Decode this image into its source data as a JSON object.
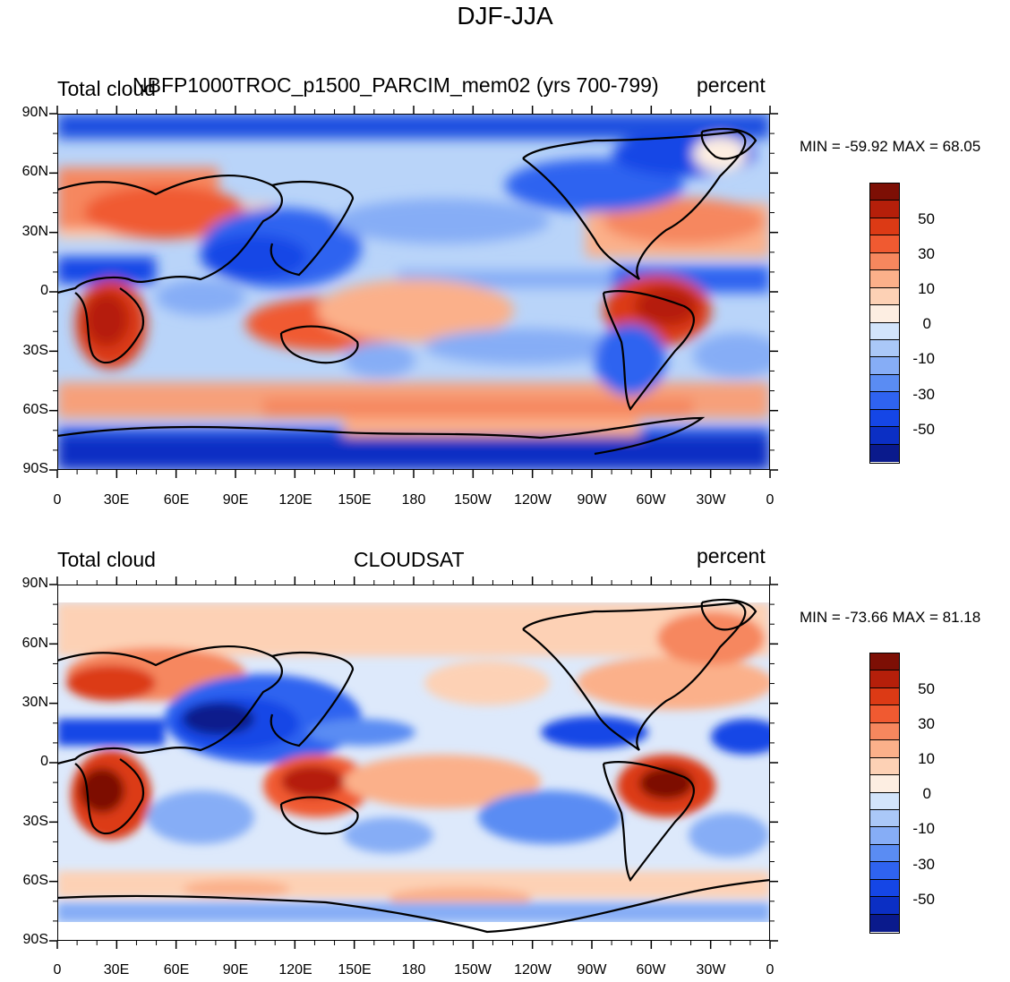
{
  "figure": {
    "title": "DJF-JJA",
    "palette": [
      "#0a1a8c",
      "#0b2fc4",
      "#1546e6",
      "#2f63f0",
      "#5a8cf3",
      "#86adf6",
      "#aac8f8",
      "#d2e4fb",
      "#fdeee2",
      "#fdd1b5",
      "#fbb08a",
      "#f6875e",
      "#f05a31",
      "#dc3a15",
      "#b51f0a",
      "#7d0f05"
    ]
  },
  "panels": [
    {
      "left_title": "Total cloud",
      "center_title": "NBFP1000TROC_p1500_PARCIM_mem02 (yrs 700-799)",
      "right_title": "percent",
      "stats": "MIN = -59.92 MAX =  68.05",
      "lat_labels": [
        "90N",
        "60N",
        "30N",
        "0",
        "30S",
        "60S",
        "90S"
      ],
      "lon_labels": [
        "0",
        "30E",
        "60E",
        "90E",
        "120E",
        "150E",
        "180",
        "150W",
        "120W",
        "90W",
        "60W",
        "30W",
        "0"
      ],
      "colorbar_labels": [
        "50",
        "30",
        "10",
        "0",
        "-10",
        "-30",
        "-50"
      ],
      "data_extent": "90S-90N"
    },
    {
      "left_title": "Total cloud",
      "center_title": "CLOUDSAT",
      "right_title": "percent",
      "stats": "MIN = -73.66 MAX =  81.18",
      "lat_labels": [
        "90N",
        "60N",
        "30N",
        "0",
        "30S",
        "60S",
        "90S"
      ],
      "lon_labels": [
        "0",
        "30E",
        "60E",
        "90E",
        "120E",
        "150E",
        "180",
        "150W",
        "120W",
        "90W",
        "60W",
        "30W",
        "0"
      ],
      "colorbar_labels": [
        "50",
        "30",
        "10",
        "0",
        "-10",
        "-30",
        "-50"
      ],
      "data_extent": "82S-82N"
    }
  ]
}
